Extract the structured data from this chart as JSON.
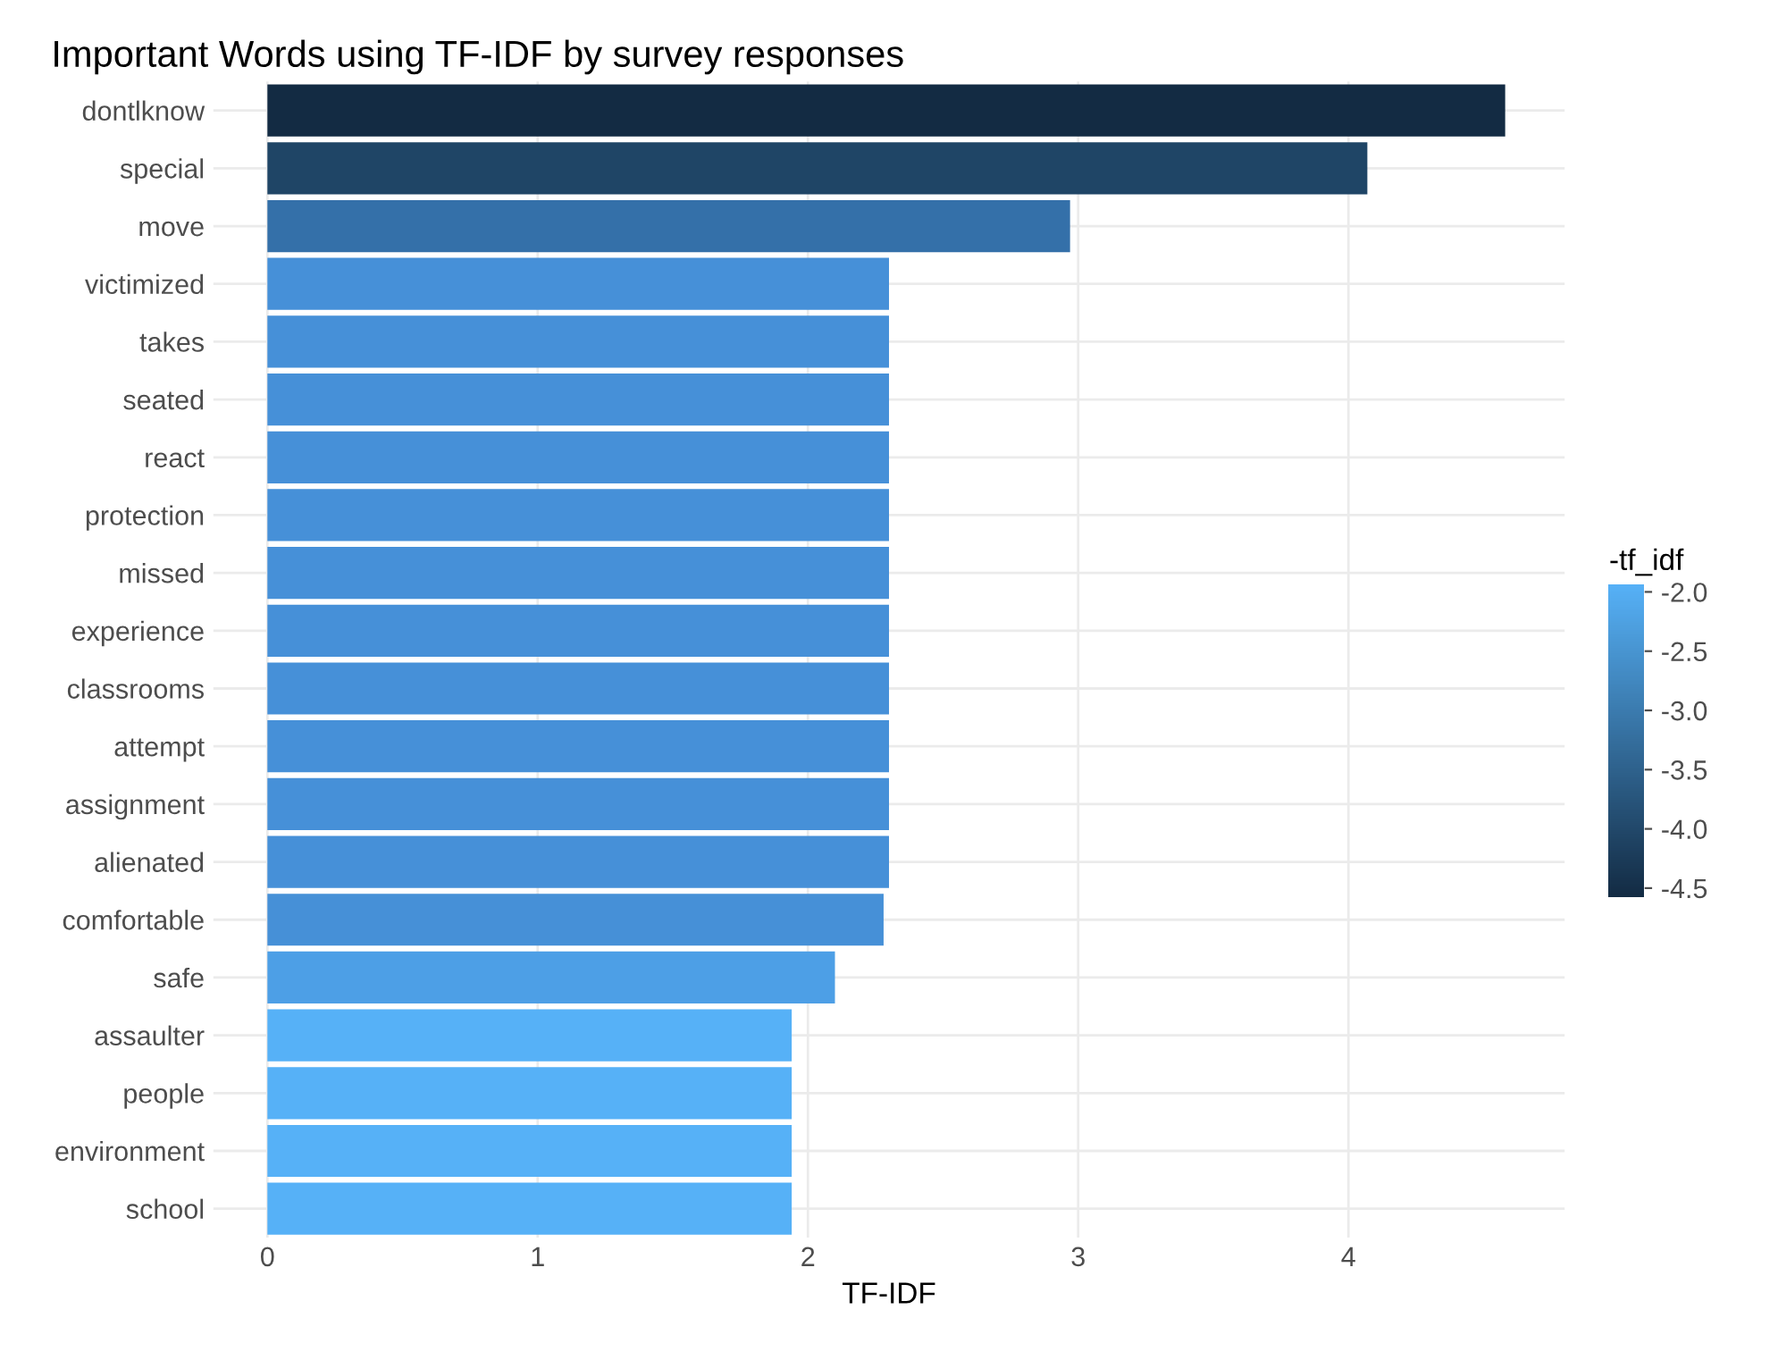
{
  "chart_data": {
    "type": "bar",
    "orientation": "horizontal",
    "title": "Important Words using TF-IDF by survey responses",
    "xlabel": "TF-IDF",
    "clabel": "-tf_idf",
    "categories": [
      "dontlknow",
      "special",
      "move",
      "victimized",
      "takes",
      "seated",
      "react",
      "protection",
      "missed",
      "experience",
      "classrooms",
      "attempt",
      "assignment",
      "alienated",
      "comfortable",
      "safe",
      "assaulter",
      "people",
      "environment",
      "school"
    ],
    "values": [
      4.58,
      4.07,
      2.97,
      2.3,
      2.3,
      2.3,
      2.3,
      2.3,
      2.3,
      2.3,
      2.3,
      2.3,
      2.3,
      2.3,
      2.28,
      2.1,
      1.94,
      1.94,
      1.94,
      1.94
    ],
    "colors": [
      "#132b43",
      "#1f4566",
      "#3470a9",
      "#4690d8",
      "#4690d8",
      "#4690d8",
      "#4690d8",
      "#4690d8",
      "#4690d8",
      "#4690d8",
      "#4690d8",
      "#4690d8",
      "#4690d8",
      "#4690d8",
      "#4690d7",
      "#4d9fe6",
      "#56b1f7",
      "#56b1f7",
      "#56b1f7",
      "#56b1f7"
    ],
    "xlim": [
      -0.2,
      4.8
    ],
    "xticks": [
      0,
      1,
      2,
      3,
      4
    ],
    "grid": true,
    "legend": false,
    "clim": [
      -4.58,
      -1.94
    ],
    "cticks": [
      {
        "value": -4.5,
        "label": "-4.5"
      },
      {
        "value": -4.0,
        "label": "-4.0"
      },
      {
        "value": -3.5,
        "label": "-3.5"
      },
      {
        "value": -3.0,
        "label": "-3.0"
      },
      {
        "value": -2.5,
        "label": "-2.5"
      },
      {
        "value": -2.0,
        "label": "-2.0"
      }
    ]
  }
}
